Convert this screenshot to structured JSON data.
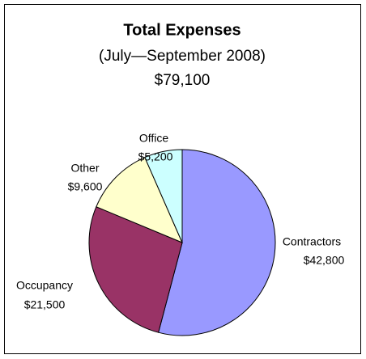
{
  "chart_data": {
    "type": "pie",
    "title": "Total Expenses",
    "subtitle": "(July—September 2008)",
    "annotations": [
      "$79,100"
    ],
    "categories": [
      "Contractors",
      "Occupancy",
      "Other",
      "Office"
    ],
    "values": [
      42800,
      21500,
      9600,
      5200
    ],
    "value_labels": [
      "$42,800",
      "$21,500",
      "$9,600",
      "$5,200"
    ],
    "colors": [
      "#9999ff",
      "#993366",
      "#ffffcc",
      "#ccffff"
    ]
  }
}
